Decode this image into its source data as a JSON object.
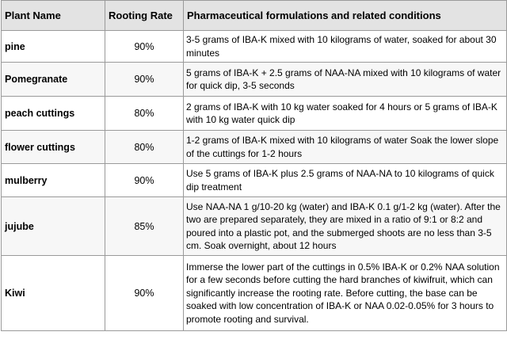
{
  "table": {
    "headers": [
      "Plant Name",
      "Rooting Rate",
      "Pharmaceutical formulations and related conditions"
    ],
    "rows": [
      {
        "plant": "pine",
        "rate": "90%",
        "formulation": "3-5 grams of IBA-K mixed with 10 kilograms of water, soaked for about 30 minutes"
      },
      {
        "plant": "Pomegranate",
        "rate": "90%",
        "formulation": "5 grams of IBA-K + 2.5 grams of NAA-NA mixed with 10 kilograms of water for quick dip, 3-5 seconds"
      },
      {
        "plant": "peach cuttings",
        "rate": "80%",
        "formulation": "2 grams of IBA-K with 10 kg water soaked for 4 hours or 5 grams of IBA-K with 10 kg water quick dip"
      },
      {
        "plant": "flower cuttings",
        "rate": "80%",
        "formulation": "1-2 grams of IBA-K mixed with 10 kilograms of water Soak the lower slope of the cuttings for 1-2 hours"
      },
      {
        "plant": "mulberry",
        "rate": "90%",
        "formulation": "Use 5 grams of IBA-K plus 2.5 grams of NAA-NA to 10 kilograms of quick dip treatment"
      },
      {
        "plant": "jujube",
        "rate": "85%",
        "formulation": "Use NAA-NA 1 g/10-20 kg (water) and IBA-K 0.1 g/1-2 kg (water). After the two are prepared separately, they are mixed in a ratio of 9:1 or 8:2 and poured into a plastic pot, and the submerged shoots are no less than 3-5 cm. Soak overnight, about 12 hours"
      },
      {
        "plant": "Kiwi",
        "rate": "90%",
        "formulation": "Immerse the lower part of the cuttings in 0.5% IBA-K or 0.2% NAA solution for a few seconds before cutting the hard branches of kiwifruit, which can significantly increase the rooting rate. Before cutting, the base can be soaked with low concentration of IBA-K or NAA 0.02-0.05% for 3 hours to promote rooting and survival."
      }
    ]
  }
}
